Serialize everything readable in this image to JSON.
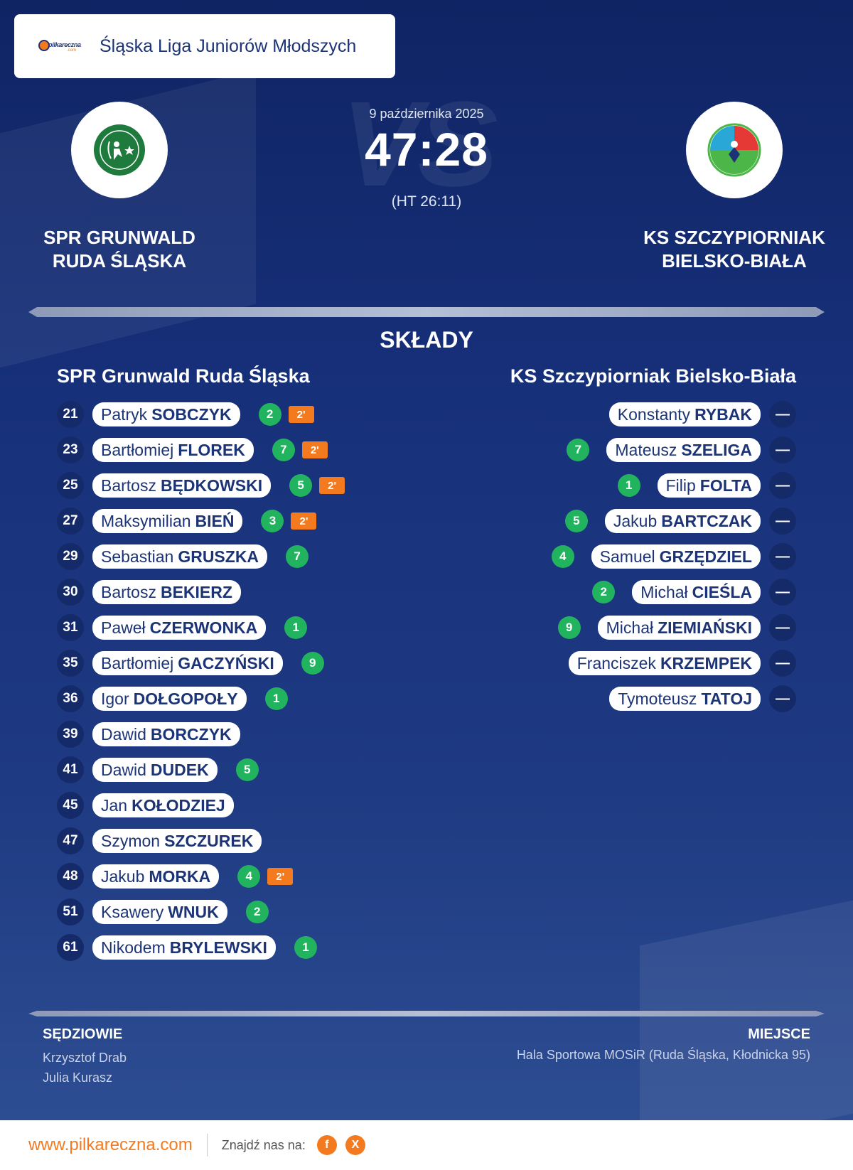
{
  "league": {
    "logo_text": "pilkareczna",
    "logo_sub": ".com",
    "name": "Śląska Liga Juniorów Młodszych"
  },
  "match": {
    "date": "9 października 2025",
    "score": "47:28",
    "halftime": "(HT 26:11)",
    "vs_text": "VS"
  },
  "home": {
    "name_line1": "SPR GRUNWALD",
    "name_line2": "RUDA ŚLĄSKA",
    "roster_title": "SPR Grunwald Ruda Śląska",
    "logo_color": "#1f7a3d",
    "players": [
      {
        "number": "21",
        "first": "Patryk",
        "last": "SOBCZYK",
        "goals": "2",
        "penalty": "2'"
      },
      {
        "number": "23",
        "first": "Bartłomiej",
        "last": "FLOREK",
        "goals": "7",
        "penalty": "2'"
      },
      {
        "number": "25",
        "first": "Bartosz",
        "last": "BĘDKOWSKI",
        "goals": "5",
        "penalty": "2'"
      },
      {
        "number": "27",
        "first": "Maksymilian",
        "last": "BIEŃ",
        "goals": "3",
        "penalty": "2'"
      },
      {
        "number": "29",
        "first": "Sebastian",
        "last": "GRUSZKA",
        "goals": "7",
        "penalty": ""
      },
      {
        "number": "30",
        "first": "Bartosz",
        "last": "BEKIERZ",
        "goals": "",
        "penalty": ""
      },
      {
        "number": "31",
        "first": "Paweł",
        "last": "CZERWONKA",
        "goals": "1",
        "penalty": ""
      },
      {
        "number": "35",
        "first": "Bartłomiej",
        "last": "GACZYŃSKI",
        "goals": "9",
        "penalty": ""
      },
      {
        "number": "36",
        "first": "Igor",
        "last": "DOŁGOPOŁY",
        "goals": "1",
        "penalty": ""
      },
      {
        "number": "39",
        "first": "Dawid",
        "last": "BORCZYK",
        "goals": "",
        "penalty": ""
      },
      {
        "number": "41",
        "first": "Dawid",
        "last": "DUDEK",
        "goals": "5",
        "penalty": ""
      },
      {
        "number": "45",
        "first": "Jan",
        "last": "KOŁODZIEJ",
        "goals": "",
        "penalty": ""
      },
      {
        "number": "47",
        "first": "Szymon",
        "last": "SZCZUREK",
        "goals": "",
        "penalty": ""
      },
      {
        "number": "48",
        "first": "Jakub",
        "last": "MORKA",
        "goals": "4",
        "penalty": "2'"
      },
      {
        "number": "51",
        "first": "Ksawery",
        "last": "WNUK",
        "goals": "2",
        "penalty": ""
      },
      {
        "number": "61",
        "first": "Nikodem",
        "last": "BRYLEWSKI",
        "goals": "1",
        "penalty": ""
      }
    ]
  },
  "away": {
    "name_line1": "KS SZCZYPIORNIAK",
    "name_line2": "BIELSKO-BIAŁA",
    "roster_title": "KS Szczypiorniak Bielsko-Biała",
    "players": [
      {
        "number": "—",
        "first": "Konstanty",
        "last": "RYBAK",
        "goals": ""
      },
      {
        "number": "—",
        "first": "Mateusz",
        "last": "SZELIGA",
        "goals": "7"
      },
      {
        "number": "—",
        "first": "Filip",
        "last": "FOLTA",
        "goals": "1"
      },
      {
        "number": "—",
        "first": "Jakub",
        "last": "BARTCZAK",
        "goals": "5"
      },
      {
        "number": "—",
        "first": "Samuel",
        "last": "GRZĘDZIEL",
        "goals": "4"
      },
      {
        "number": "—",
        "first": "Michał",
        "last": "CIEŚLA",
        "goals": "2"
      },
      {
        "number": "—",
        "first": "Michał",
        "last": "ZIEMIAŃSKI",
        "goals": "9"
      },
      {
        "number": "—",
        "first": "Franciszek",
        "last": "KRZEMPEK",
        "goals": ""
      },
      {
        "number": "—",
        "first": "Tymoteusz",
        "last": "TATOJ",
        "goals": ""
      }
    ]
  },
  "lineups_title": "SKŁADY",
  "referees": {
    "title": "SĘDZIOWIE",
    "names": [
      "Krzysztof Drab",
      "Julia Kurasz"
    ]
  },
  "venue": {
    "title": "MIEJSCE",
    "text": "Hala Sportowa MOSiR (Ruda Śląska, Kłodnicka 95)"
  },
  "footer": {
    "url": "www.pilkareczna.com",
    "find_us": "Znajdź nas na:",
    "social": [
      {
        "icon": "facebook-icon",
        "glyph": "f"
      },
      {
        "icon": "x-icon",
        "glyph": "X"
      }
    ]
  },
  "colors": {
    "accent": "#f47a1f",
    "navy": "#1c3476",
    "goal_green": "#22b35e"
  }
}
